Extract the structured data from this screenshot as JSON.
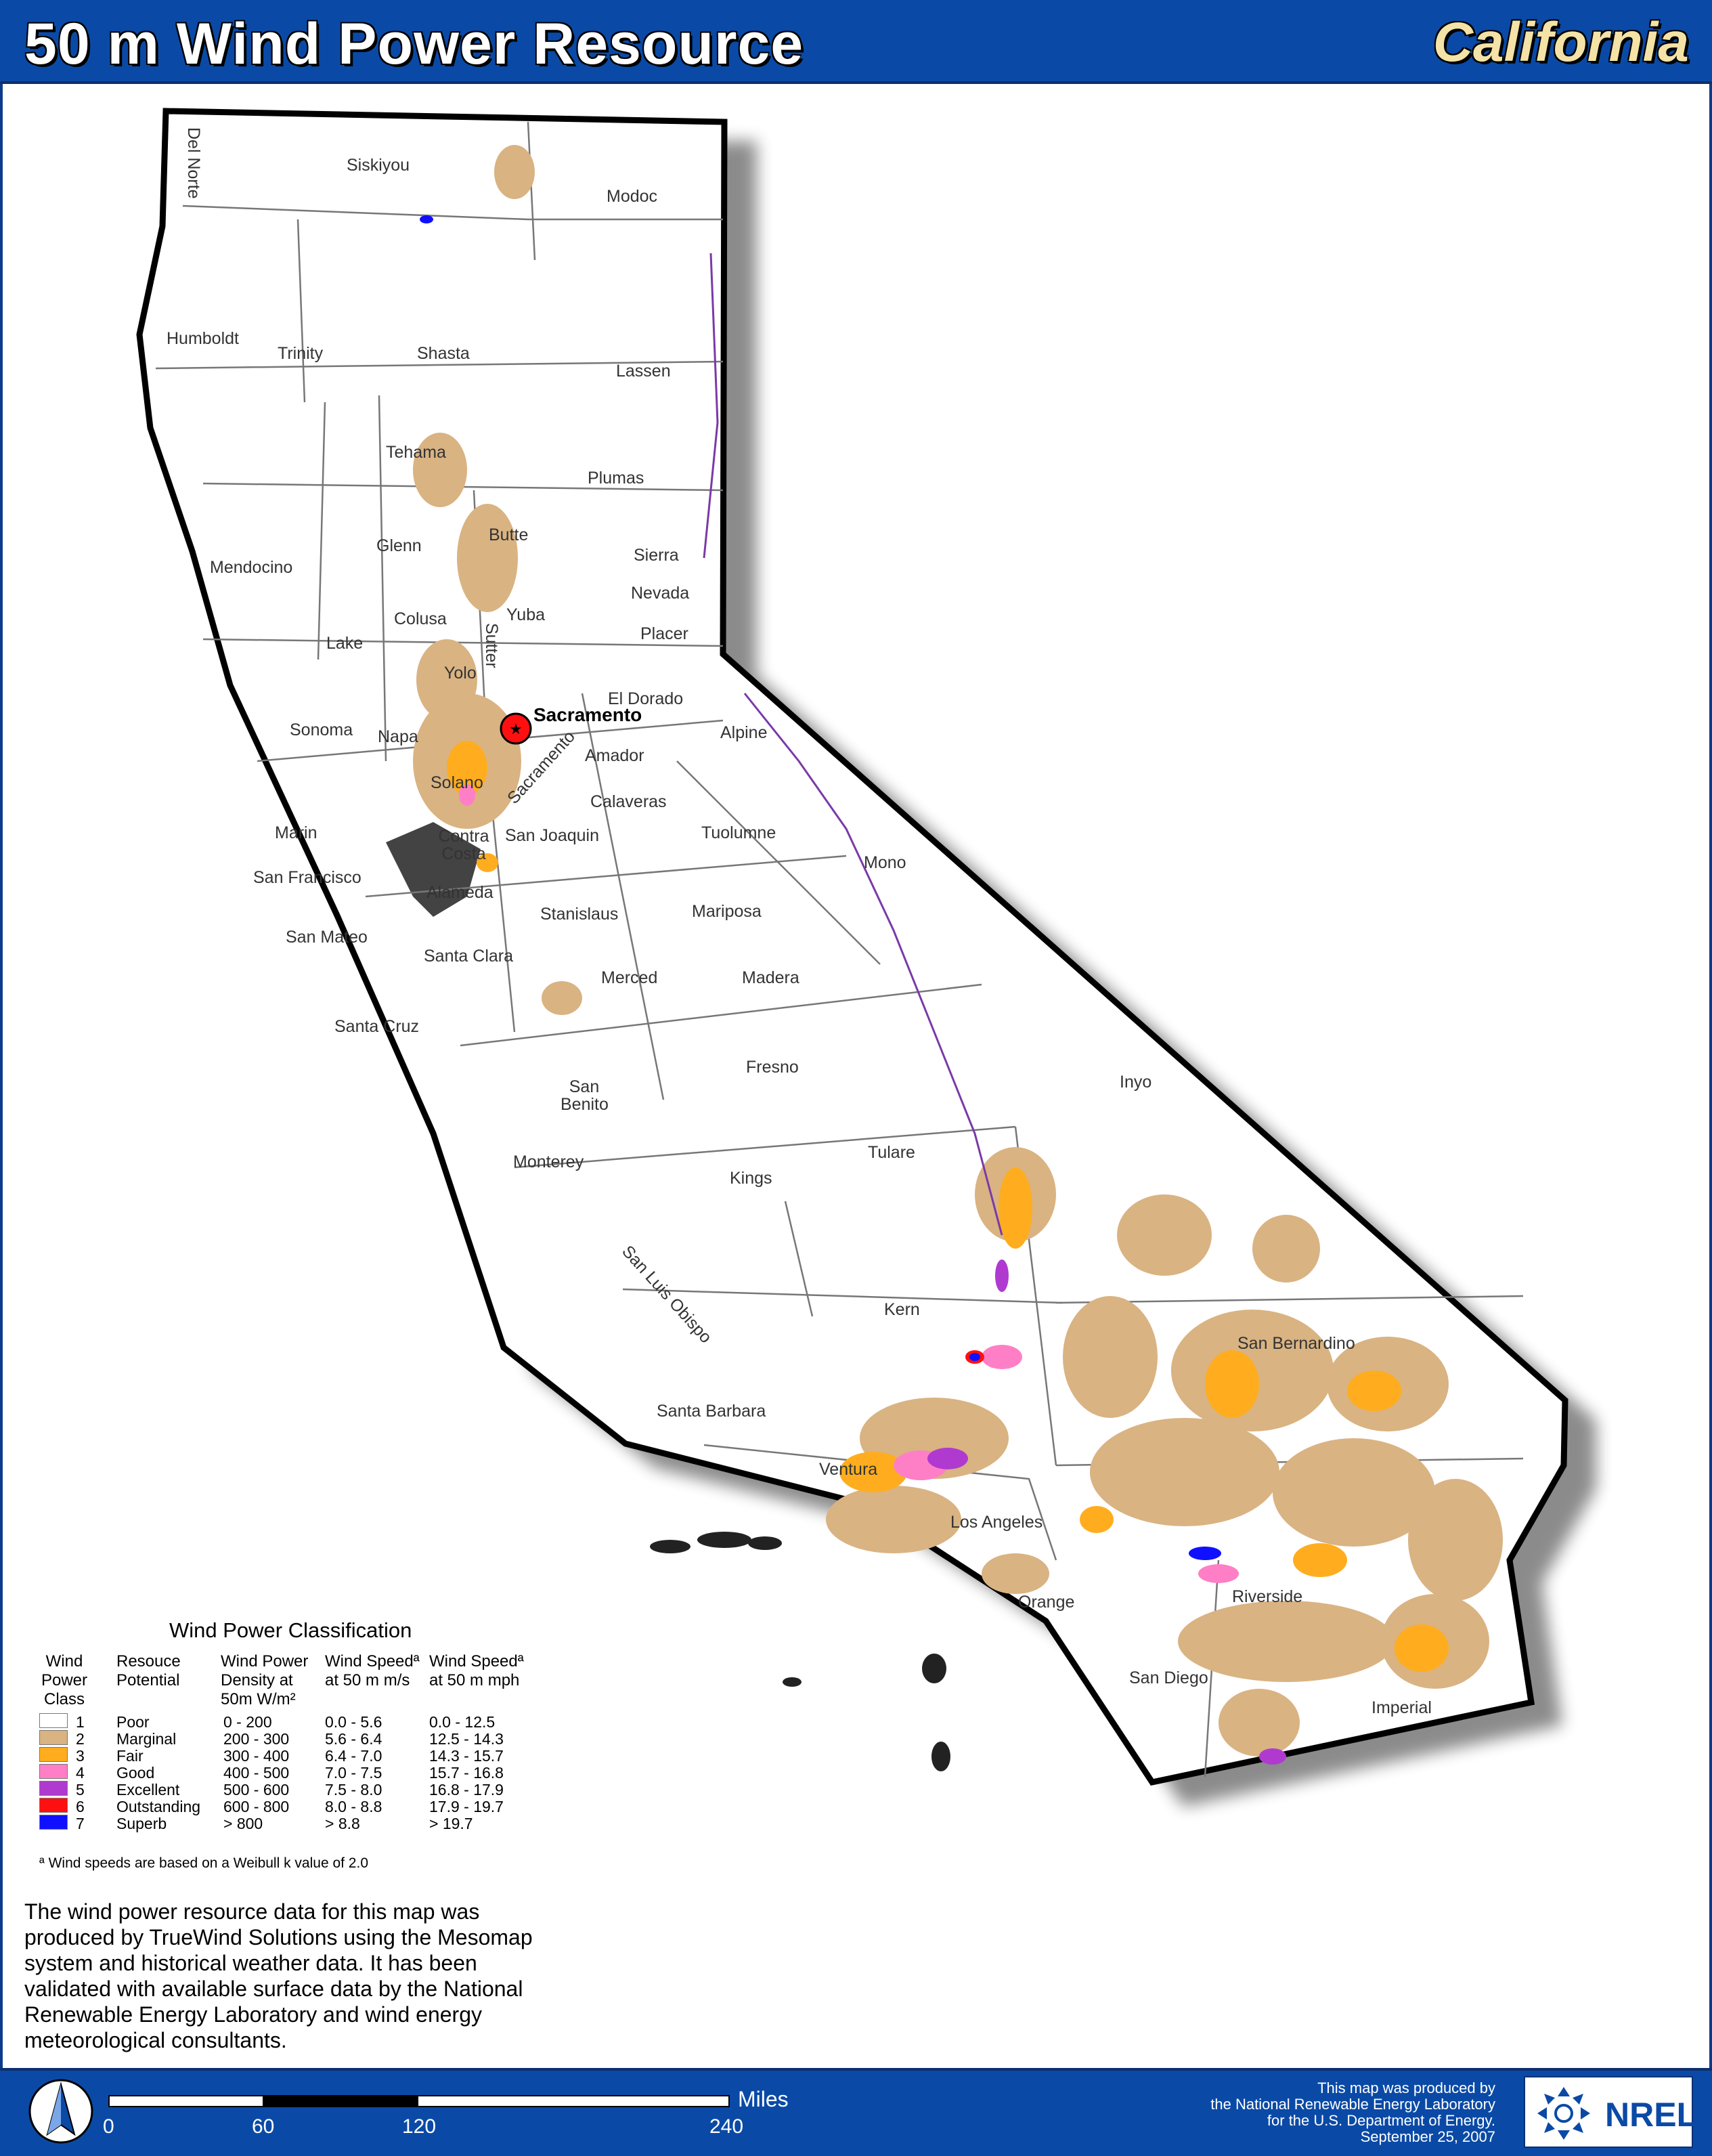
{
  "header": {
    "title": "50 m Wind Power Resource",
    "state": "California"
  },
  "capital": {
    "name": "Sacramento"
  },
  "counties": [
    "Del Norte",
    "Siskiyou",
    "Modoc",
    "Humboldt",
    "Trinity",
    "Shasta",
    "Lassen",
    "Tehama",
    "Plumas",
    "Mendocino",
    "Glenn",
    "Butte",
    "Sierra",
    "Nevada",
    "Colusa",
    "Yuba",
    "Placer",
    "Lake",
    "Sutter",
    "Yolo",
    "El Dorado",
    "Sonoma",
    "Napa",
    "Sacramento",
    "Alpine",
    "Amador",
    "Solano",
    "Calaveras",
    "Marin",
    "Contra Costa",
    "San Joaquin",
    "Tuolumne",
    "San Francisco",
    "Alameda",
    "Mono",
    "Stanislaus",
    "Mariposa",
    "San Mateo",
    "Santa Clara",
    "Merced",
    "Madera",
    "Santa Cruz",
    "Fresno",
    "San Benito",
    "Inyo",
    "Monterey",
    "Kings",
    "Tulare",
    "San Luis Obispo",
    "Kern",
    "San Bernardino",
    "Santa Barbara",
    "Ventura",
    "Los Angeles",
    "Orange",
    "Riverside",
    "San Diego",
    "Imperial"
  ],
  "legend": {
    "title": "Wind Power Classification",
    "headers": {
      "class": "Wind Power Class",
      "potential": "Resouce Potential",
      "density": "Wind Power Density at 50m W/m²",
      "speed_ms": "Wind Speedª at 50 m m/s",
      "speed_mph": "Wind Speedª at 50 m mph"
    },
    "rows": [
      {
        "cls": "1",
        "potential": "Poor",
        "density": "0 - 200",
        "ms": "0.0 - 5.6",
        "mph": "0.0 - 12.5",
        "color": "#ffffff"
      },
      {
        "cls": "2",
        "potential": "Marginal",
        "density": "200 - 300",
        "ms": "5.6 - 6.4",
        "mph": "12.5 - 14.3",
        "color": "#d9b382"
      },
      {
        "cls": "3",
        "potential": "Fair",
        "density": "300 - 400",
        "ms": "6.4 - 7.0",
        "mph": "14.3 - 15.7",
        "color": "#ffad1f"
      },
      {
        "cls": "4",
        "potential": "Good",
        "density": "400 - 500",
        "ms": "7.0 - 7.5",
        "mph": "15.7 - 16.8",
        "color": "#ff7fc6"
      },
      {
        "cls": "5",
        "potential": "Excellent",
        "density": "500 - 600",
        "ms": "7.5 - 8.0",
        "mph": "16.8 - 17.9",
        "color": "#b03ad0"
      },
      {
        "cls": "6",
        "potential": "Outstanding",
        "density": "600 - 800",
        "ms": "8.0 - 8.8",
        "mph": "17.9 - 19.7",
        "color": "#ff1010"
      },
      {
        "cls": "7",
        "potential": "Superb",
        "density": "> 800",
        "ms": "> 8.8",
        "mph": "> 19.7",
        "color": "#1010ff"
      }
    ],
    "note": "ª Wind speeds are based on a Weibull k value of 2.0"
  },
  "description": "The wind power resource data for this map was produced by TrueWind Solutions using the Mesomap system and historical weather data. It has been validated with available surface data by the National Renewable Energy Laboratory and wind energy meteorological consultants.",
  "scale": {
    "ticks": [
      "0",
      "60",
      "120",
      "240"
    ],
    "unit": "Miles"
  },
  "credit": {
    "line1": "This map was produced by",
    "line2": "the National Renewable Energy Laboratory",
    "line3": "for the U.S. Department of Energy.",
    "line4": "September 25, 2007"
  },
  "logo": {
    "text": "NREL"
  },
  "colors": {
    "header_blue": "#0a4aa6",
    "state_gold": "#f4e2a6"
  }
}
